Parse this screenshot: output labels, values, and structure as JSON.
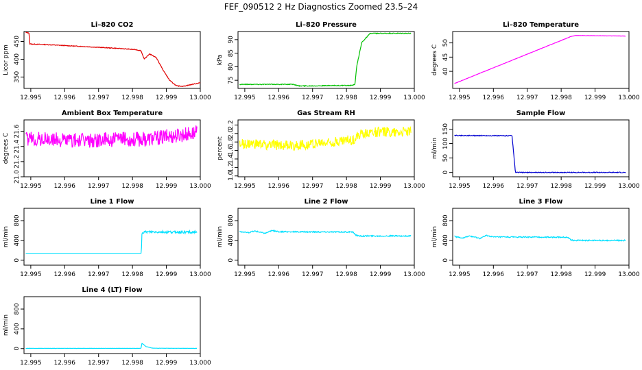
{
  "figure": {
    "title": "FEF_090512  2 Hz Diagnostics Zoomed 23.5–24"
  },
  "chart_data": [
    {
      "type": "line",
      "title": "Li–820 CO2",
      "ylabel": "Licor ppm",
      "xlim": [
        12.9948,
        13.0
      ],
      "ylim": [
        318,
        478
      ],
      "x_ticks": [
        12.995,
        12.996,
        12.997,
        12.998,
        12.999,
        13.0
      ],
      "x_tick_labels": [
        "12.995",
        "12.996",
        "12.997",
        "12.998",
        "12.999",
        "13.000"
      ],
      "y_ticks": [
        350,
        400,
        450
      ],
      "y_tick_labels": [
        "350",
        "400",
        "450"
      ],
      "color": "#e00000",
      "noise": 1,
      "series": [
        {
          "x": [
            12.99485,
            12.99495,
            12.99497,
            12.9955,
            12.9965,
            12.9975,
            12.9981,
            12.99825,
            12.99835,
            12.9985,
            12.9987,
            12.9989,
            12.9991,
            12.9993,
            12.9995,
            12.9998,
            13.0
          ],
          "y": [
            475,
            474,
            443,
            441,
            436,
            431,
            427,
            424,
            400,
            415,
            405,
            370,
            340,
            325,
            324,
            330,
            334
          ]
        }
      ]
    },
    {
      "type": "line",
      "title": "Li–820 Pressure",
      "ylabel": "kPa",
      "xlim": [
        12.9948,
        13.0
      ],
      "ylim": [
        72,
        93
      ],
      "x_ticks": [
        12.995,
        12.996,
        12.997,
        12.998,
        12.999,
        13.0
      ],
      "x_tick_labels": [
        "12.995",
        "12.996",
        "12.997",
        "12.998",
        "12.999",
        "13.000"
      ],
      "y_ticks": [
        75,
        80,
        85,
        90
      ],
      "y_tick_labels": [
        "75",
        "80",
        "85",
        "90"
      ],
      "color": "#00c000",
      "noise": 0.15,
      "series": [
        {
          "x": [
            12.99485,
            12.99645,
            12.9966,
            12.99815,
            12.99825,
            12.9983,
            12.99845,
            12.9987,
            12.9999
          ],
          "y": [
            73.5,
            73.5,
            72.9,
            73.1,
            73.4,
            80,
            89,
            92.3,
            92.3
          ]
        }
      ]
    },
    {
      "type": "line",
      "title": "Li–820 Temperature",
      "ylabel": "degrees C",
      "xlim": [
        12.9948,
        13.0
      ],
      "ylim": [
        34,
        54
      ],
      "x_ticks": [
        12.995,
        12.996,
        12.997,
        12.998,
        12.999,
        13.0
      ],
      "x_tick_labels": [
        "12.995",
        "12.996",
        "12.997",
        "12.998",
        "12.999",
        "13.000"
      ],
      "y_ticks": [
        40,
        45,
        50
      ],
      "y_tick_labels": [
        "40",
        "45",
        "50"
      ],
      "color": "#ff00ff",
      "noise": 0.05,
      "series": [
        {
          "x": [
            12.99485,
            12.9983,
            12.99845,
            12.9999
          ],
          "y": [
            35.7,
            52.3,
            52.6,
            52.4
          ]
        }
      ]
    },
    {
      "type": "line",
      "title": "Ambient Box Temperature",
      "ylabel": "degrees C",
      "xlim": [
        12.9948,
        13.0
      ],
      "ylim": [
        21.0,
        21.75
      ],
      "x_ticks": [
        12.995,
        12.996,
        12.997,
        12.998,
        12.999,
        13.0
      ],
      "x_tick_labels": [
        "12.995",
        "12.996",
        "12.997",
        "12.998",
        "12.999",
        "13.000"
      ],
      "y_ticks": [
        21.0,
        21.2,
        21.4,
        21.6
      ],
      "y_tick_labels": [
        "21.0",
        "21.2",
        "21.4",
        "21.6"
      ],
      "color": "#ff00ff",
      "noise": 0.1,
      "series": [
        {
          "x": [
            12.99485,
            12.9965,
            12.9985,
            12.9999
          ],
          "y": [
            21.5,
            21.48,
            21.5,
            21.58
          ]
        }
      ]
    },
    {
      "type": "line",
      "title": "Gas Stream RH",
      "ylabel": "percent",
      "xlim": [
        12.9948,
        13.0
      ],
      "ylim": [
        0.98,
        2.32
      ],
      "x_ticks": [
        12.995,
        12.996,
        12.997,
        12.998,
        12.999,
        13.0
      ],
      "x_tick_labels": [
        "12.995",
        "12.996",
        "12.997",
        "12.998",
        "12.999",
        "13.000"
      ],
      "y_ticks": [
        1.0,
        1.2,
        1.4,
        1.6,
        1.8,
        2.0,
        2.2
      ],
      "y_tick_labels": [
        "1.0",
        "1.2",
        "1.4",
        "1.6",
        "1.8",
        "2.0",
        "2.2"
      ],
      "color": "#ffff00",
      "noise": 0.12,
      "series": [
        {
          "x": [
            12.99485,
            12.9965,
            12.9982,
            12.9985,
            12.9999
          ],
          "y": [
            1.75,
            1.72,
            1.85,
            2.02,
            2.05
          ]
        }
      ]
    },
    {
      "type": "line",
      "title": "Sample Flow",
      "ylabel": "ml/min",
      "xlim": [
        12.9948,
        13.0
      ],
      "ylim": [
        -15,
        182
      ],
      "x_ticks": [
        12.995,
        12.996,
        12.997,
        12.998,
        12.999,
        13.0
      ],
      "x_tick_labels": [
        "12.995",
        "12.996",
        "12.997",
        "12.998",
        "12.999",
        "13.000"
      ],
      "y_ticks": [
        0,
        50,
        100,
        150
      ],
      "y_tick_labels": [
        "0",
        "50",
        "100",
        "150"
      ],
      "color": "#0000d0",
      "noise": 1.5,
      "series": [
        {
          "x": [
            12.99485,
            12.99655,
            12.99665,
            12.9999
          ],
          "y": [
            128,
            127,
            0,
            0
          ]
        }
      ]
    },
    {
      "type": "line",
      "title": "Line 1 Flow",
      "ylabel": "ml/min",
      "xlim": [
        12.9948,
        13.0
      ],
      "ylim": [
        -100,
        1050
      ],
      "x_ticks": [
        12.995,
        12.996,
        12.997,
        12.998,
        12.999,
        13.0
      ],
      "x_tick_labels": [
        "12.995",
        "12.996",
        "12.997",
        "12.998",
        "12.999",
        "13.000"
      ],
      "y_ticks": [
        0,
        400,
        800
      ],
      "y_tick_labels": [
        "0",
        "400",
        "800"
      ],
      "color": "#00e0ff",
      "noise": 25,
      "noise_start": 12.99827,
      "series": [
        {
          "x": [
            12.99485,
            12.99826,
            12.99828,
            12.9999
          ],
          "y": [
            140,
            140,
            570,
            570
          ]
        }
      ]
    },
    {
      "type": "line",
      "title": "Line 2 Flow",
      "ylabel": "ml/min",
      "xlim": [
        12.9948,
        13.0
      ],
      "ylim": [
        -100,
        1050
      ],
      "x_ticks": [
        12.995,
        12.996,
        12.997,
        12.998,
        12.999,
        13.0
      ],
      "x_tick_labels": [
        "12.995",
        "12.996",
        "12.997",
        "12.998",
        "12.999",
        "13.000"
      ],
      "y_ticks": [
        0,
        400,
        800
      ],
      "y_tick_labels": [
        "0",
        "400",
        "800"
      ],
      "color": "#00e0ff",
      "noise": 12,
      "series": [
        {
          "x": [
            12.99485,
            12.9951,
            12.9953,
            12.9956,
            12.9958,
            12.996,
            12.9982,
            12.99827,
            12.99835,
            12.9999
          ],
          "y": [
            580,
            555,
            590,
            545,
            600,
            575,
            570,
            510,
            490,
            490
          ]
        }
      ]
    },
    {
      "type": "line",
      "title": "Line 3 Flow",
      "ylabel": "ml/min",
      "xlim": [
        12.9948,
        13.0
      ],
      "ylim": [
        -100,
        1050
      ],
      "x_ticks": [
        12.995,
        12.996,
        12.997,
        12.998,
        12.999,
        13.0
      ],
      "x_tick_labels": [
        "12.995",
        "12.996",
        "12.997",
        "12.998",
        "12.999",
        "13.000"
      ],
      "y_ticks": [
        0,
        400,
        800
      ],
      "y_tick_labels": [
        "0",
        "400",
        "800"
      ],
      "color": "#00e0ff",
      "noise": 12,
      "series": [
        {
          "x": [
            12.99485,
            12.9951,
            12.9953,
            12.9956,
            12.9958,
            12.996,
            12.9982,
            12.99827,
            12.99835,
            12.9999
          ],
          "y": [
            480,
            450,
            490,
            440,
            500,
            470,
            465,
            420,
            400,
            400
          ]
        }
      ]
    },
    {
      "type": "line",
      "title": "Line 4 (LT) Flow",
      "ylabel": "ml/min",
      "xlim": [
        12.9948,
        13.0
      ],
      "ylim": [
        -100,
        1050
      ],
      "x_ticks": [
        12.995,
        12.996,
        12.997,
        12.998,
        12.999,
        13.0
      ],
      "x_tick_labels": [
        "12.995",
        "12.996",
        "12.997",
        "12.998",
        "12.999",
        "13.000"
      ],
      "y_ticks": [
        0,
        400,
        800
      ],
      "y_tick_labels": [
        "0",
        "400",
        "800"
      ],
      "color": "#00e0ff",
      "noise": 2,
      "series": [
        {
          "x": [
            12.99485,
            12.99825,
            12.99828,
            12.9984,
            12.9986,
            12.9999
          ],
          "y": [
            5,
            5,
            110,
            40,
            8,
            5
          ]
        }
      ]
    }
  ]
}
